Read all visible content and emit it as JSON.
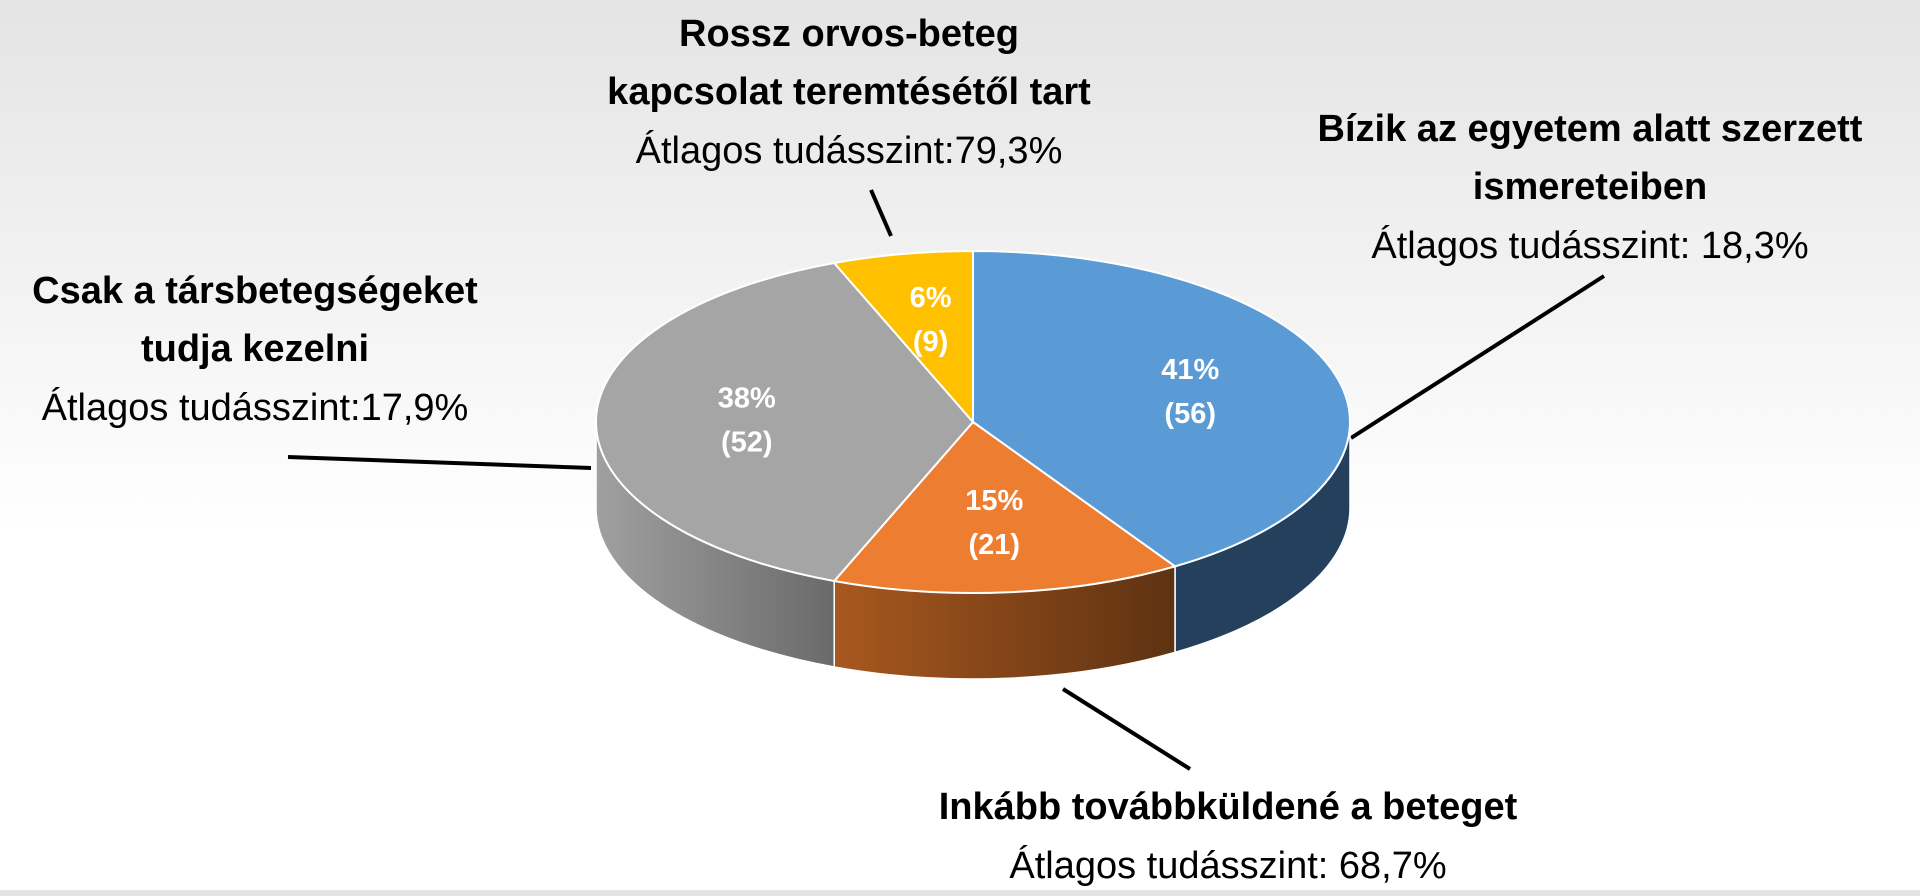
{
  "chart_data": {
    "type": "pie3d",
    "categories": [
      [
        "Bízik az egyetem alatt szerzett",
        "ismereteiben"
      ],
      [
        "Inkább továbbküldené a beteget"
      ],
      [
        "Csak a társbetegségeket",
        "tudja kezelni"
      ],
      [
        "Rossz orvos-beteg",
        "kapcsolat teremtésétől tart"
      ]
    ],
    "category_notes": [
      "Átlagos tudásszint: 18,3%",
      "Átlagos tudásszint: 68,7%",
      "Átlagos tudásszint:17,9%",
      "Átlagos tudásszint:79,3%"
    ],
    "values": [
      41,
      15,
      38,
      6
    ],
    "value_labels": [
      "41%",
      "15%",
      "38%",
      "6%"
    ],
    "counts": [
      56,
      21,
      52,
      9
    ],
    "count_labels": [
      "(56)",
      "(21)",
      "(52)",
      "(9)"
    ],
    "colors": [
      "#5b9bd5",
      "#ed7d31",
      "#a5a5a5",
      "#ffc000"
    ]
  }
}
